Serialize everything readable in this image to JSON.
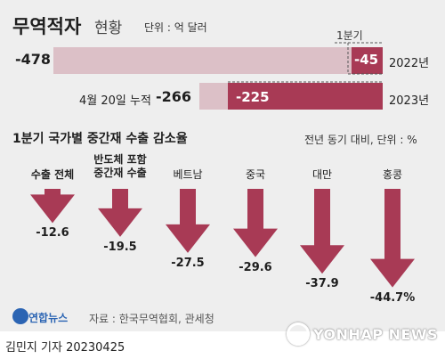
{
  "header": {
    "title": "무역적자",
    "subtitle": "현황",
    "unit": "단위 : 억 달러"
  },
  "chart_data": [
    {
      "type": "bar",
      "orientation": "horizontal",
      "categories": [
        "2022년",
        "2023년"
      ],
      "series": [
        {
          "name": "",
          "values": [
            -478,
            -266
          ]
        },
        {
          "name": "1분기",
          "values": [
            -45,
            -225
          ]
        }
      ],
      "row_labels": [
        "-478",
        "-266"
      ],
      "inner_labels": [
        "-45",
        "-225"
      ],
      "prefix_2023": "4월 20일 누적",
      "callout": "1분기",
      "colors": {
        "total": "#dcc0c7",
        "q1": "#a83a55"
      }
    },
    {
      "type": "bar",
      "title": "1분기 국가별 중간재 수출 감소율",
      "unit": "전년 동기 대비, 단위 : %",
      "categories": [
        {
          "lines": [
            "수출 전체"
          ],
          "bold": true
        },
        {
          "lines": [
            "반도체 포함",
            "중간재 수출"
          ],
          "bold": true
        },
        {
          "lines": [
            "베트남"
          ],
          "bold": false
        },
        {
          "lines": [
            "중국"
          ],
          "bold": false
        },
        {
          "lines": [
            "대만"
          ],
          "bold": false
        },
        {
          "lines": [
            "홍콩"
          ],
          "bold": false
        }
      ],
      "values": [
        -12.6,
        -19.5,
        -27.5,
        -29.6,
        -37.9,
        -44.7
      ],
      "value_labels": [
        "-12.6",
        "-19.5",
        "-27.5",
        "-29.6",
        "-37.9",
        "-44.7%"
      ],
      "color": "#a83a55"
    }
  ],
  "footer": {
    "logo_text": "연합뉴스",
    "source": "자료 : 한국무역협회, 관세청",
    "watermark": "YONHAP NEWS",
    "byline": "김민지 기자  20230425"
  }
}
